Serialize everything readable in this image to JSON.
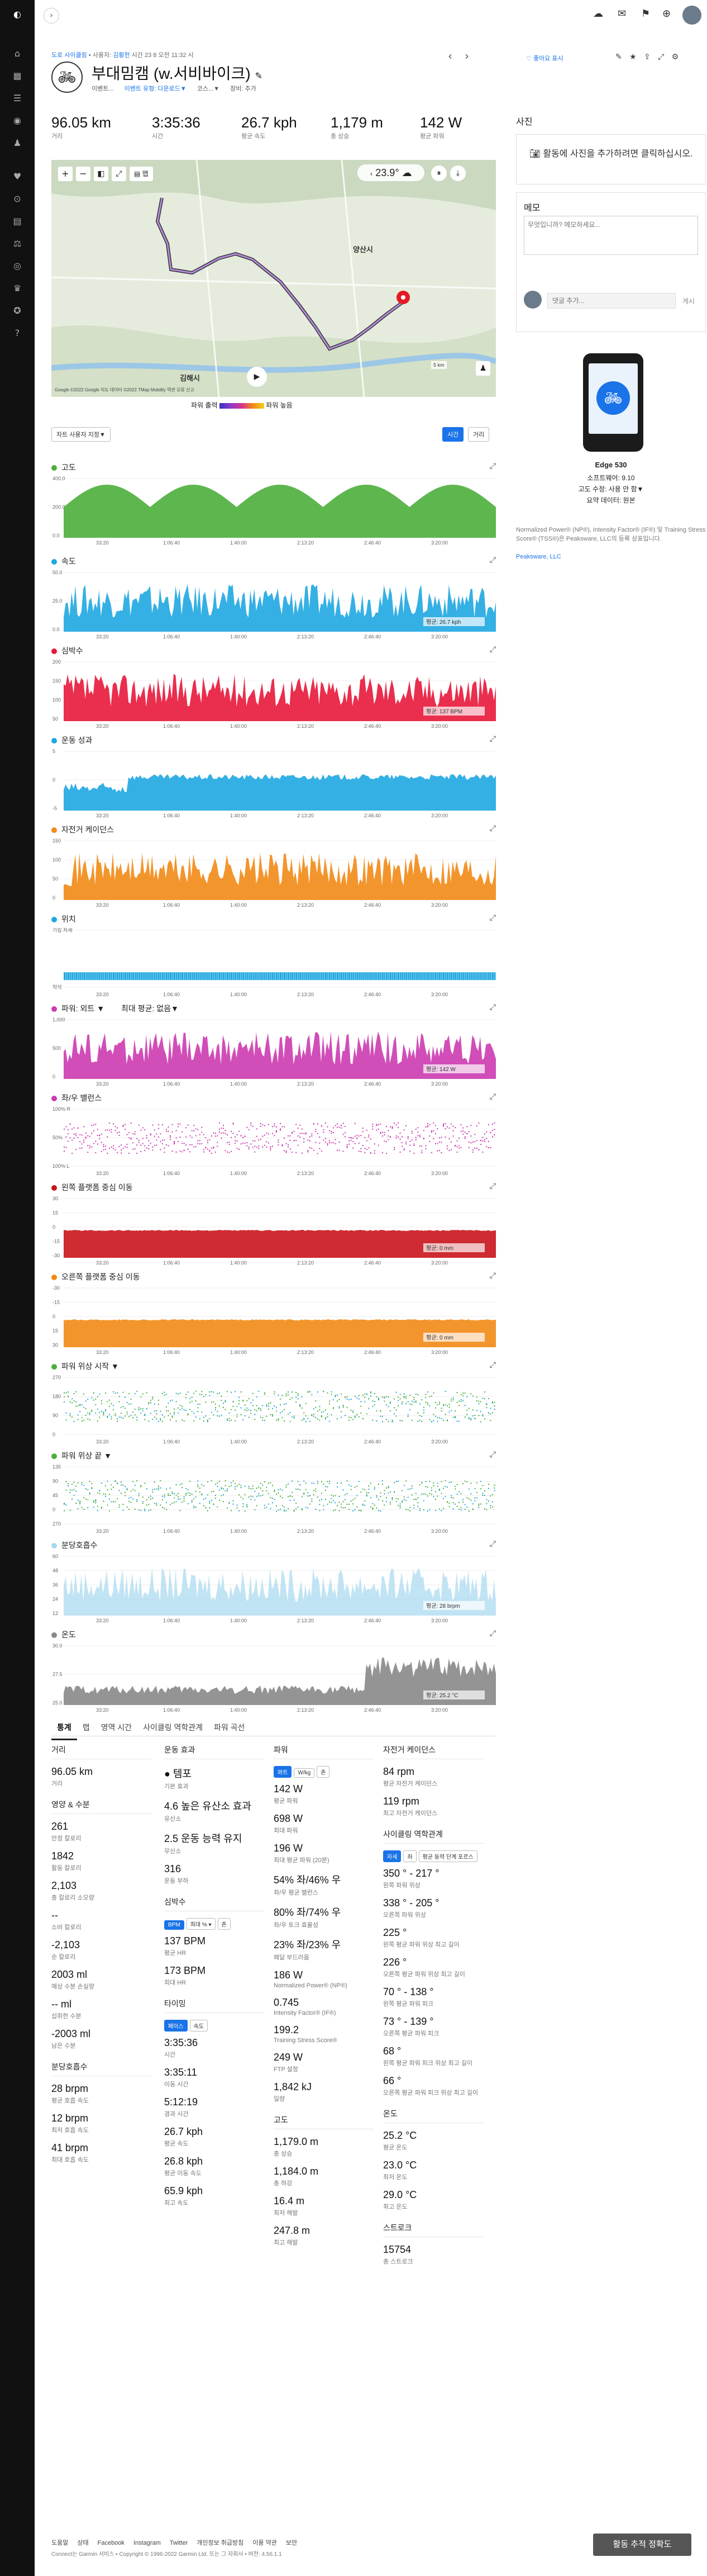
{
  "nav": {
    "icons": [
      "garmin-logo-icon",
      "dashboard-icon",
      "calendar-icon",
      "workout-icon",
      "activity-icon",
      "heart-icon",
      "stress-icon",
      "chart-icon",
      "body-icon",
      "insights-icon",
      "challenge-icon",
      "badge-icon",
      "help-icon"
    ]
  },
  "header": {
    "breadcrumb_parts": [
      "도로 사이클링",
      "• 사용자:",
      "김황헌",
      "시간 23 8 오전 11:32 시"
    ],
    "title": "부대밈캠 (w.서비바이크)",
    "sub_items": [
      "이벤트...",
      "이벤트 유형: 다운로드▼",
      "코스...▼",
      "장비: 추가"
    ],
    "prev_icon": "‹",
    "next_icon": "›",
    "like_label": "좋아요 표시"
  },
  "summary": [
    {
      "value": "96.05 km",
      "label": "거리"
    },
    {
      "value": "3:35:36",
      "label": "시간"
    },
    {
      "value": "26.7 kph",
      "label": "평균 속도"
    },
    {
      "value": "1,179 m",
      "label": "총 상승"
    },
    {
      "value": "142 W",
      "label": "평균 파워"
    }
  ],
  "map": {
    "temp": "23.9°",
    "place1": "양산시",
    "place2": "김해시",
    "footer": "Google ©2022 Google 지도 데이터 ©2022 TMap Mobility 약관 오류 신고",
    "scale": "5 km",
    "legend_left": "파워 출력",
    "legend_right": "파워 높음"
  },
  "chart_toolbar": {
    "dropdown": "차트 사용자 지정▼",
    "btn_time": "시간",
    "btn_distance": "거리"
  },
  "x_ticks": [
    "33:20",
    "1:06:40",
    "1:40:00",
    "2:13:20",
    "2:46:40",
    "3:20:00"
  ],
  "charts": [
    {
      "key": "elevation",
      "title": "고도",
      "color": "#4cae3c",
      "y_labels": [
        "400.0",
        "200.0",
        "0.0"
      ],
      "note": ""
    },
    {
      "key": "speed",
      "title": "속도",
      "color": "#1ea7e1",
      "y_labels": [
        "50.0",
        "25.0",
        "0.0"
      ],
      "note": "평균: 26.7 kph"
    },
    {
      "key": "hr",
      "title": "심박수",
      "color": "#e8173a",
      "y_labels": [
        "200",
        "150",
        "100",
        "50"
      ],
      "note": "평균: 137 BPM"
    },
    {
      "key": "perf",
      "title": "운동 성과",
      "color": "#1ea7e1",
      "y_labels": [
        "5",
        "0",
        "-5"
      ],
      "note": ""
    },
    {
      "key": "cadence",
      "title": "자전거 케이던스",
      "color": "#f28a16",
      "y_labels": [
        "150",
        "100",
        "50",
        "0"
      ],
      "note": ""
    },
    {
      "key": "position",
      "title": "위치",
      "color": "#1ea7e1",
      "y_labels": [
        "기립 자세",
        "착석"
      ],
      "note": ""
    },
    {
      "key": "power",
      "title": "파워: 외트 ▼",
      "subtitle": "최대 평균: 없음▼",
      "color": "#cc3bb0",
      "y_labels": [
        "1,000",
        "500",
        "0"
      ],
      "note": "평균: 142 W"
    },
    {
      "key": "balance",
      "title": "좌/우 밸런스",
      "color": "#cc3bb0",
      "y_labels": [
        "100% R",
        "50%",
        "100% L"
      ],
      "note": ""
    },
    {
      "key": "lpco",
      "title": "왼쪽 플랫폼 중심 이동",
      "color": "#c9141c",
      "y_labels": [
        "30",
        "15",
        "0",
        "-15",
        "-30"
      ],
      "note": "평균: 0 mm"
    },
    {
      "key": "rpco",
      "title": "오른쪽 플랫폼 중심 이동",
      "color": "#f28a16",
      "y_labels": [
        "-30",
        "-15",
        "0",
        "15",
        "30"
      ],
      "note": "평균: 0 mm"
    },
    {
      "key": "power_start",
      "title": "파워 위상 시작 ▼",
      "color": "#4cae3c",
      "y_labels": [
        "270",
        "180",
        "90",
        "0"
      ],
      "note": ""
    },
    {
      "key": "power_end",
      "title": "파워 위상 끝 ▼",
      "color": "#4cae3c",
      "y_labels": [
        "135",
        "90",
        "45",
        "0",
        "270"
      ],
      "note": ""
    },
    {
      "key": "resp",
      "title": "분당호흡수",
      "color": "#a6d8f0",
      "y_labels": [
        "60",
        "48",
        "36",
        "24",
        "12"
      ],
      "note": "평균: 28 brpm"
    },
    {
      "key": "temp",
      "title": "온도",
      "color": "#888888",
      "y_labels": [
        "30.0",
        "27.5",
        "25.0"
      ],
      "note": "평균: 25.2 °C"
    }
  ],
  "tabs": [
    "통계",
    "랩",
    "영역 시간",
    "사이클링 역학관계",
    "파워 곡선"
  ],
  "stats": {
    "distance": {
      "head": "거리",
      "items": [
        {
          "v": "96.05 km",
          "l": "거리"
        }
      ]
    },
    "calories": {
      "head": "영양 & 수분",
      "items": [
        {
          "v": "261",
          "l": "안정 칼로리"
        },
        {
          "v": "1842",
          "l": "활동 칼로리"
        },
        {
          "v": "2,103",
          "l": "총 칼로리 소모량"
        },
        {
          "v": "--",
          "l": "소비 칼로리"
        },
        {
          "v": "-2,103",
          "l": "순 칼로리"
        },
        {
          "v": "2003 ml",
          "l": "예상 수분 손실량"
        },
        {
          "v": "-- ml",
          "l": "섭취한 수분"
        },
        {
          "v": "-2003 ml",
          "l": "남은 수분"
        }
      ]
    },
    "respiration": {
      "head": "분당호흡수",
      "items": [
        {
          "v": "28 brpm",
          "l": "평균 호흡 속도"
        },
        {
          "v": "12 brpm",
          "l": "최저 호흡 속도"
        },
        {
          "v": "41 brpm",
          "l": "최대 호흡 속도"
        }
      ]
    },
    "effect": {
      "head": "운동 효과",
      "items": [
        {
          "v": "● 템포",
          "l": "기본 효과"
        },
        {
          "v": "4.6 높은 유산소 효과",
          "l": "유산소"
        },
        {
          "v": "2.5 운동 능력 유지",
          "l": "무산소"
        },
        {
          "v": "316",
          "l": "운동 부하"
        }
      ]
    },
    "hr": {
      "head": "심박수",
      "pills": [
        "BPM",
        "최대 % ▾",
        "존"
      ],
      "items": [
        {
          "v": "137 BPM",
          "l": "평균 HR"
        },
        {
          "v": "173 BPM",
          "l": "최대 HR"
        }
      ]
    },
    "timing": {
      "head": "타이밍",
      "pills": [
        "페이스",
        "속도"
      ],
      "items": [
        {
          "v": "3:35:36",
          "l": "시간"
        },
        {
          "v": "3:35:11",
          "l": "이동 시간"
        },
        {
          "v": "5:12:19",
          "l": "경과 시간"
        },
        {
          "v": "26.7 kph",
          "l": "평균 속도"
        },
        {
          "v": "26.8 kph",
          "l": "평균 이동 속도"
        },
        {
          "v": "65.9 kph",
          "l": "최고 속도"
        }
      ]
    },
    "power": {
      "head": "파워",
      "pills": [
        "와트",
        "W/kg",
        "존"
      ],
      "items": [
        {
          "v": "142 W",
          "l": "평균 파워"
        },
        {
          "v": "698 W",
          "l": "최대 파워"
        },
        {
          "v": "196 W",
          "l": "최대 평균 파워 (20분)"
        },
        {
          "v": "54% 좌/46% 우",
          "l": "좌/우 평균 밸런스"
        },
        {
          "v": "80% 좌/74% 우",
          "l": "좌/우 토크 효율성"
        },
        {
          "v": "23% 좌/23% 우",
          "l": "페달 부드러움"
        },
        {
          "v": "186 W",
          "l": "Normalized Power® (NP®)"
        },
        {
          "v": "0.745",
          "l": "Intensity Factor® (IF®)"
        },
        {
          "v": "199.2",
          "l": "Training Stress Score®"
        },
        {
          "v": "249 W",
          "l": "FTP 설정"
        },
        {
          "v": "1,842 kJ",
          "l": "일량"
        }
      ]
    },
    "elevation": {
      "head": "고도",
      "items": [
        {
          "v": "1,179.0 m",
          "l": "총 상승"
        },
        {
          "v": "1,184.0 m",
          "l": "총 하강"
        },
        {
          "v": "16.4 m",
          "l": "최저 해발"
        },
        {
          "v": "247.8 m",
          "l": "최고 해발"
        }
      ]
    },
    "bike_cadence": {
      "head": "자전거 케이던스",
      "items": [
        {
          "v": "84 rpm",
          "l": "평균 자전거 케이던스"
        },
        {
          "v": "119 rpm",
          "l": "최고 자전거 케이던스"
        }
      ]
    },
    "dynamics": {
      "head": "사이클링 역학관계",
      "pills": [
        "자세",
        "좌",
        "평균 동력 단계 포르스"
      ],
      "items": [
        {
          "v": "350 ° - 217 °",
          "l": "왼쪽 파워 위상"
        },
        {
          "v": "338 ° - 205 °",
          "l": "오른쪽 파워 위상"
        },
        {
          "v": "225 °",
          "l": "왼쪽 평균 파워 위상 최고 길이"
        },
        {
          "v": "226 °",
          "l": "오른쪽 평균 파워 위상 최고 길이"
        },
        {
          "v": "70 ° - 138 °",
          "l": "왼쪽 평균 파워 피크"
        },
        {
          "v": "73 ° - 139 °",
          "l": "오른쪽 평균 파워 피크"
        },
        {
          "v": "68 °",
          "l": "왼쪽 평균 파워 피크 위상 최고 길이"
        },
        {
          "v": "66 °",
          "l": "오른쪽 평균 파워 피크 위상 최고 길이"
        }
      ]
    },
    "temperature": {
      "head": "온도",
      "items": [
        {
          "v": "25.2 °C",
          "l": "평균 온도"
        },
        {
          "v": "23.0 °C",
          "l": "최저 온도"
        },
        {
          "v": "29.0 °C",
          "l": "최고 온도"
        }
      ]
    },
    "strokes": {
      "head": "스트로크",
      "items": [
        {
          "v": "15754",
          "l": "총 스트로크"
        }
      ]
    }
  },
  "sidebar": {
    "photos_title": "사진",
    "add_photo": "활동에 사진을 추가하려면 클릭하십시오.",
    "notes_title": "메모",
    "notes_placeholder": "무엇입니까? 메모하세요...",
    "comment_placeholder": "댓글 추가...",
    "post_label": "게시",
    "device_name": "Edge 530",
    "software": "소프트웨어: 9.10",
    "elevation_source": "고도 수정: 사용 안 함▼",
    "summary_data": "요약 데이터: 원본",
    "legal": "Normalized Power® (NP®), Intensity Factor® (IF®) 및 Training Stress Score® (TSS®)은 Peaksware, LLC의 등록 상표입니다.",
    "legal_link": "Peaksware, LLC"
  },
  "footer": {
    "links": [
      "도움말",
      "상태",
      "Facebook",
      "Instagram",
      "Twitter",
      "개인정보 취급방침",
      "이용 약관",
      "보안"
    ],
    "copyright": "Connect는 Garmin 서비스 • Copyright © 1996-2022 Garmin Ltd. 또는 그 자회사 • 버전: 4.56.1.1",
    "feedback": "활동 추적 정확도"
  }
}
